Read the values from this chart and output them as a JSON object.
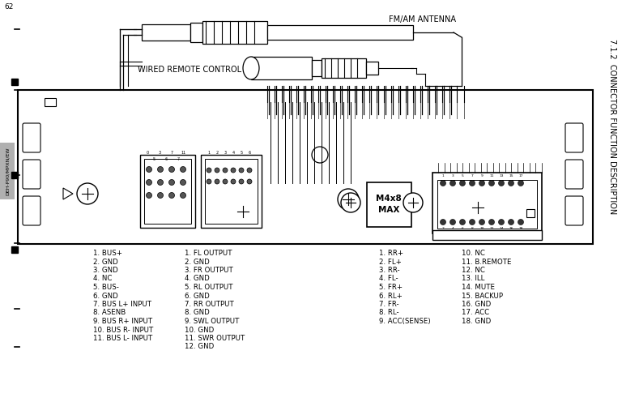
{
  "title": "7.1.2  CONNECTOR FUNCTION DESCRIPTION",
  "side_label": "DEH-P90/MPXN/EW",
  "page_num_top": "62",
  "fm_am_label": "FM/AM ANTENNA",
  "remote_label": "WIRED REMOTE CONTROL",
  "max_label": "M4x8\nMAX",
  "col1_left": [
    "1. BUS+",
    "2. GND",
    "3. GND",
    "4. NC",
    "5. BUS-",
    "6. GND",
    "7. BUS L+ INPUT",
    "8. ASENB",
    "9. BUS R+ INPUT",
    "10. BUS R- INPUT",
    "11. BUS L- INPUT"
  ],
  "col1_right": [
    "1. FL OUTPUT",
    "2. GND",
    "3. FR OUTPUT",
    "4. GND",
    "5. RL OUTPUT",
    "6. GND",
    "7. RR OUTPUT",
    "8. GND",
    "9. SWL OUTPUT",
    "10. GND",
    "11. SWR OUTPUT",
    "12. GND"
  ],
  "col2_left": [
    "1. RR+",
    "2. FL+",
    "3. RR-",
    "4. FL-",
    "5. FR+",
    "6. RL+",
    "7. FR-",
    "8. RL-",
    "9. ACC(SENSE)"
  ],
  "col2_right": [
    "10. NC",
    "11. B.REMOTE",
    "12. NC",
    "13. ILL",
    "14. MUTE",
    "15. BACKUP",
    "16. GND",
    "17. ACC",
    "18. GND"
  ],
  "bg_color": "#ffffff",
  "line_color": "#000000",
  "text_color": "#000000"
}
